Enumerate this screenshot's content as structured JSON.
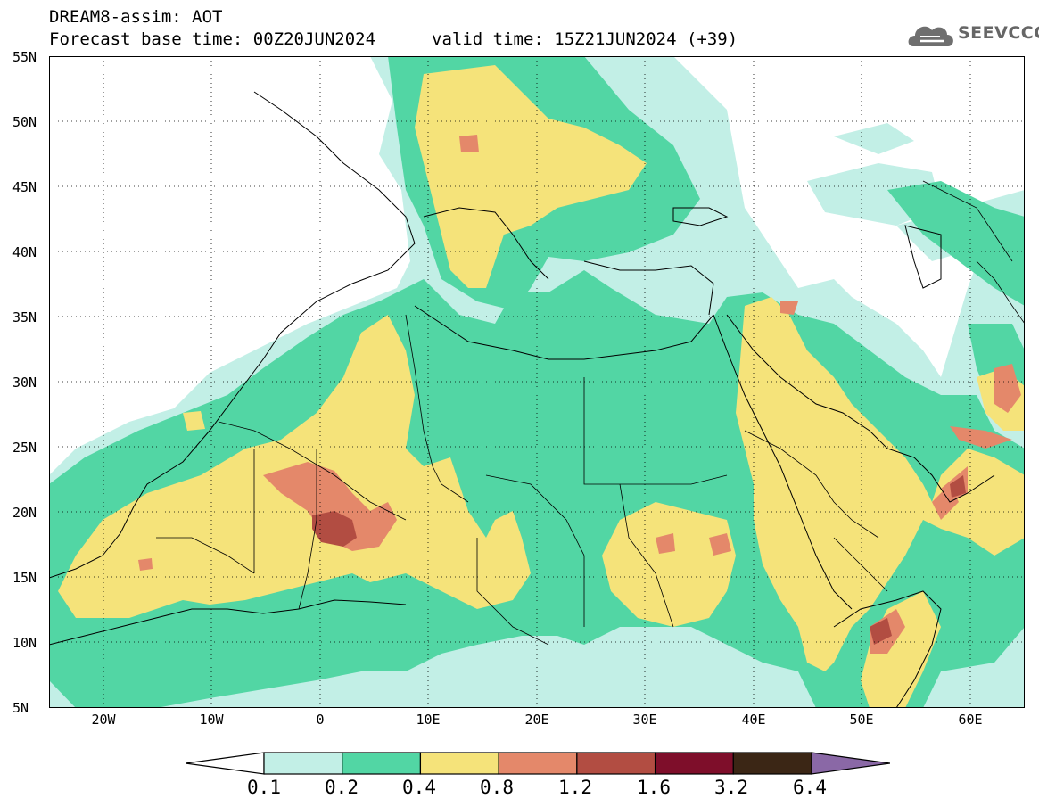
{
  "header": {
    "title": "DREAM8-assim: AOT",
    "base_time": "Forecast base time: 00Z20JUN2024",
    "valid_time": "valid time: 15Z21JUN2024 (+39)"
  },
  "logo": {
    "text": "SEEVCCC",
    "icon": "cloud-icon"
  },
  "map": {
    "variable": "AOT",
    "lat_labels": [
      "55N",
      "50N",
      "45N",
      "40N",
      "35N",
      "30N",
      "25N",
      "20N",
      "15N",
      "10N",
      "5N"
    ],
    "lon_labels": [
      "20W",
      "10W",
      "0",
      "10E",
      "20E",
      "30E",
      "40E",
      "50E",
      "60E"
    ],
    "lat_range": [
      5,
      55
    ],
    "lon_range": [
      -25,
      65
    ]
  },
  "colorbar": {
    "labels": [
      "0.1",
      "0.2",
      "0.4",
      "0.8",
      "1.2",
      "1.6",
      "3.2",
      "6.4"
    ],
    "colors": [
      "#ffffff",
      "#c2efe6",
      "#52d6a4",
      "#f5e37a",
      "#e4886a",
      "#b24d42",
      "#7e0e2a",
      "#3b2615",
      "#8a68a6"
    ]
  }
}
